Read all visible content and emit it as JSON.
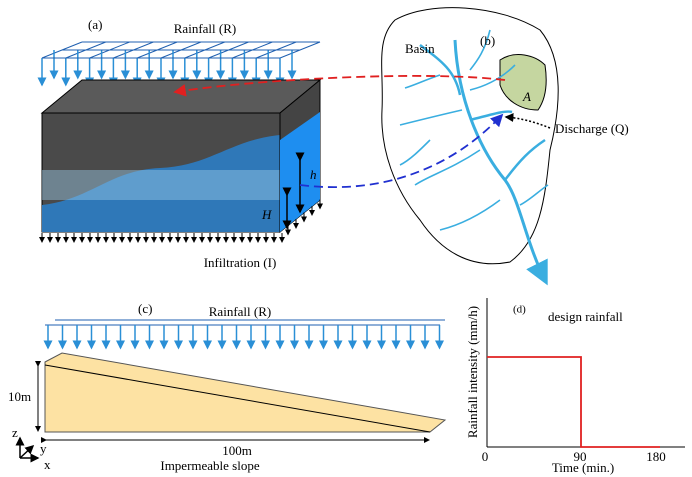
{
  "panel_a": {
    "label": "(a)",
    "rainfall": "Rainfall (R)",
    "h": "h",
    "H": "H",
    "infiltration": "Infiltration (I)"
  },
  "panel_b": {
    "label": "(b)",
    "basin": "Basin",
    "area": "A",
    "discharge": "Discharge (Q)"
  },
  "panel_c": {
    "label": "(c)",
    "rainfall": "Rainfall (R)",
    "height": "10m",
    "length": "100m",
    "caption": "Impermeable slope",
    "axis_z": "z",
    "axis_y": "y",
    "axis_x": "x"
  },
  "panel_d": {
    "label": "(d)",
    "title": "design rainfall",
    "y_label": "Rainfall intensity (mm/h)",
    "x_label": "Time (min.)",
    "x_ticks": [
      "0",
      "90",
      "180"
    ]
  }
}
